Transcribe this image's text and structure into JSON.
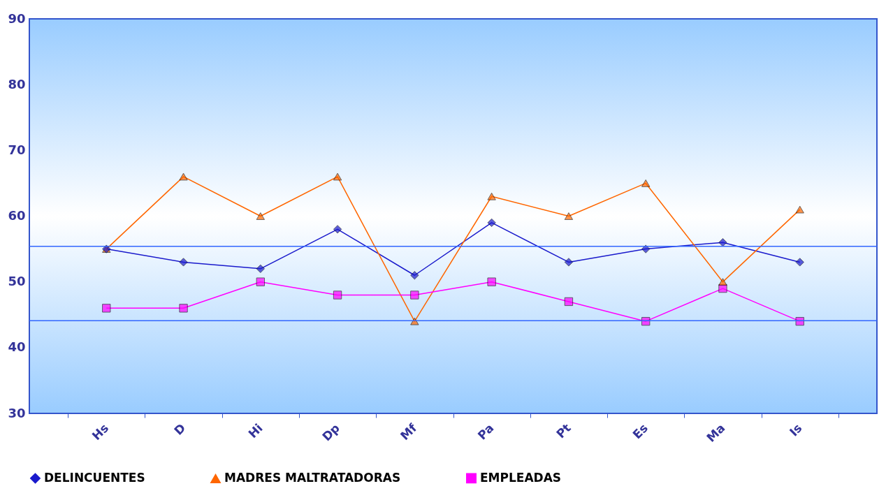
{
  "chart_data": {
    "type": "line",
    "categories": [
      "Hs",
      "D",
      "Hi",
      "Dp",
      "Mf",
      "Pa",
      "Pt",
      "Es",
      "Ma",
      "Is"
    ],
    "series": [
      {
        "name": "DELINCUENTES",
        "color": "#1a1acc",
        "marker": "diamond",
        "values": [
          55,
          53,
          52,
          58,
          51,
          59,
          53,
          55,
          56,
          53
        ]
      },
      {
        "name": "MADRES MALTRATADORAS",
        "color": "#ff6600",
        "marker": "triangle",
        "values": [
          55,
          66,
          60,
          66,
          44,
          63,
          60,
          65,
          50,
          61
        ]
      },
      {
        "name": "EMPLEADAS",
        "color": "#ff00ff",
        "marker": "square",
        "values": [
          46,
          46,
          50,
          48,
          48,
          50,
          47,
          44,
          49,
          44
        ]
      }
    ],
    "ylim": [
      30,
      90
    ],
    "yticks": [
      30,
      40,
      50,
      60,
      70,
      80,
      90
    ],
    "ref_lines": [
      {
        "axis": "y",
        "value": 55.4,
        "color": "#3366ff"
      },
      {
        "axis": "y",
        "value": 44.1,
        "color": "#3366ff"
      }
    ],
    "grid": false,
    "legend": "bottom"
  }
}
